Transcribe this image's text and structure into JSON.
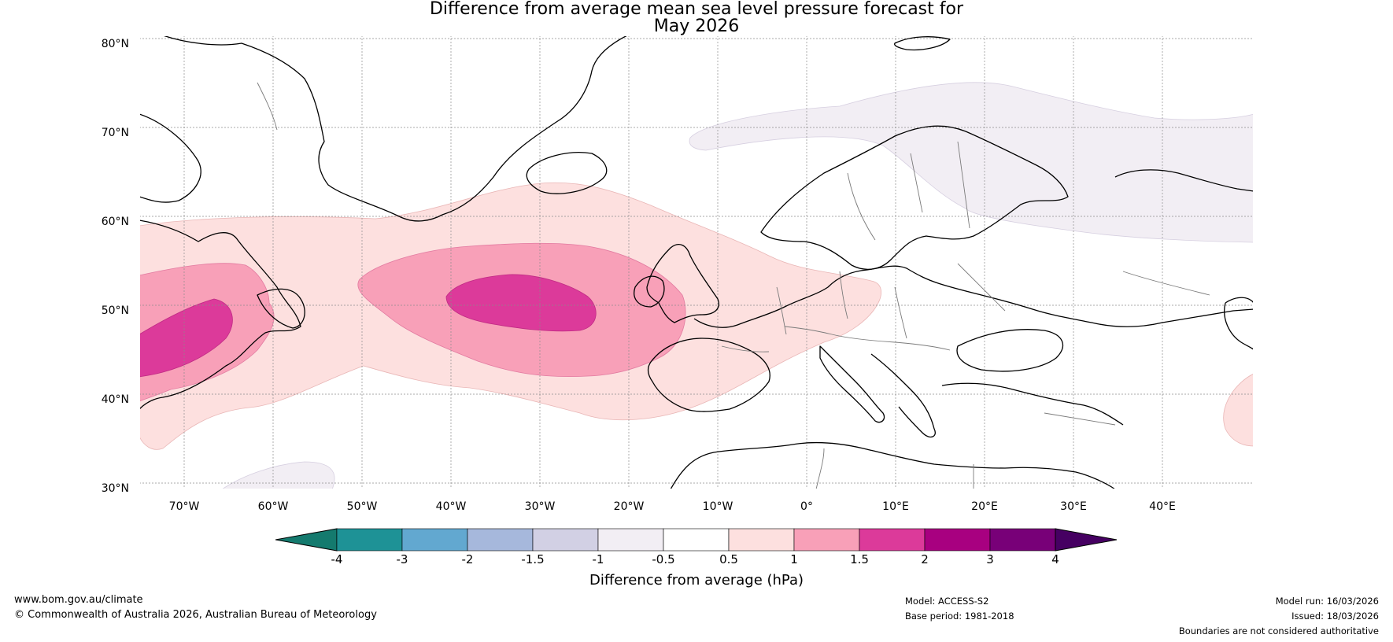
{
  "title": {
    "line1": "Difference from average mean sea level pressure forecast for",
    "line2": "May 2026"
  },
  "map": {
    "lat_labels": [
      "80°N",
      "70°N",
      "60°N",
      "50°N",
      "40°N",
      "30°N"
    ],
    "lon_labels": [
      "70°W",
      "60°W",
      "50°W",
      "40°W",
      "30°W",
      "20°W",
      "10°W",
      "0°",
      "10°E",
      "20°E",
      "30°E",
      "40°E"
    ]
  },
  "colorbar": {
    "label": "Difference from average (hPa)",
    "ticks": [
      "-4",
      "-3",
      "-2",
      "-1.5",
      "-1",
      "-0.5",
      "0.5",
      "1",
      "1.5",
      "2",
      "3",
      "4"
    ],
    "colors": [
      "#147a6e",
      "#1e9296",
      "#62a8d0",
      "#a6b8dc",
      "#d2d0e4",
      "#f2eef4",
      "#ffffff",
      "#fde0df",
      "#f8a0b8",
      "#dc3a9a",
      "#a80080",
      "#780078",
      "#460062"
    ]
  },
  "footer": {
    "url": "www.bom.gov.au/climate",
    "copyright": "© Commonwealth of Australia 2026, Australian Bureau of Meteorology",
    "model": "Model: ACCESS-S2",
    "base_period": "Base period: 1981-2018",
    "model_run": "Model run: 16/03/2026",
    "issued": "Issued: 18/03/2026",
    "disclaimer": "Boundaries are not considered authoritative"
  }
}
